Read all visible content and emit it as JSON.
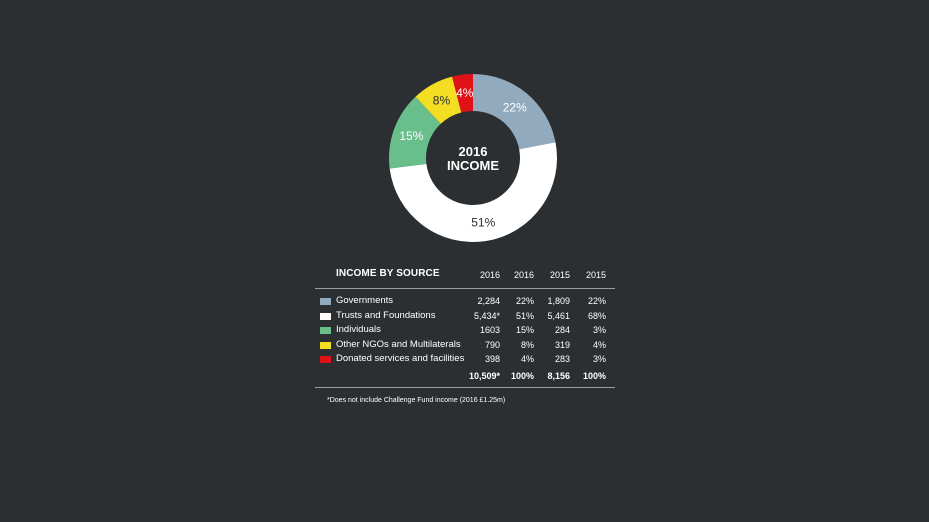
{
  "chart_data": {
    "type": "pie",
    "donut": true,
    "center_label": [
      "2016",
      "INCOME"
    ],
    "slices": [
      {
        "name": "Governments",
        "value": 22,
        "label": "22%",
        "color": "#92aabd"
      },
      {
        "name": "Trusts and Foundations",
        "value": 51,
        "label": "51%",
        "color": "#ffffff"
      },
      {
        "name": "Individuals",
        "value": 15,
        "label": "15%",
        "color": "#69bf8c"
      },
      {
        "name": "Other NGOs and Multilaterals",
        "value": 8,
        "label": "8%",
        "color": "#f4de22"
      },
      {
        "name": "Donated services and facilities",
        "value": 4,
        "label": "4%",
        "color": "#e01218"
      }
    ]
  },
  "table": {
    "title": "INCOME BY SOURCE",
    "headers": [
      "2016",
      "2016",
      "2015",
      "2015"
    ],
    "rows": [
      {
        "label": "Governments",
        "color": "#92aabd",
        "values": [
          "2,284",
          "22%",
          "1,809",
          "22%"
        ]
      },
      {
        "label": "Trusts and Foundations",
        "color": "#ffffff",
        "values": [
          "5,434*",
          "51%",
          "5,461",
          "68%"
        ]
      },
      {
        "label": "Individuals",
        "color": "#69bf8c",
        "values": [
          "1603",
          "15%",
          "284",
          "3%"
        ]
      },
      {
        "label": "Other NGOs and Multilaterals",
        "color": "#f4de22",
        "values": [
          "790",
          "8%",
          "319",
          "4%"
        ]
      },
      {
        "label": "Donated services and facilities",
        "color": "#e01218",
        "values": [
          "398",
          "4%",
          "283",
          "3%"
        ]
      }
    ],
    "totals": [
      "10,509*",
      "100%",
      "8,156",
      "100%"
    ]
  },
  "footnote": "*Does not include Challenge Fund income (2016 £1.25m)"
}
